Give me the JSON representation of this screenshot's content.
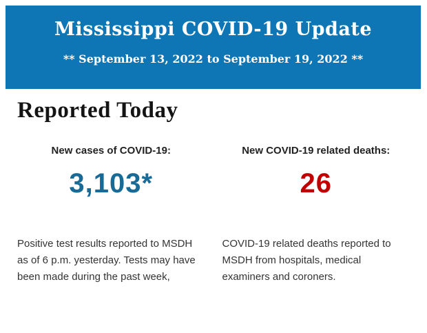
{
  "header": {
    "title": "Mississippi COVID-19 Update",
    "subtitle": "** September 13, 2022 to September 19, 2022 **",
    "background_color": "#0e76b5",
    "text_color": "#ffffff"
  },
  "main": {
    "section_title": "Reported Today",
    "stats": [
      {
        "label": "New cases of COVID-19:",
        "value": "3,103*",
        "value_color": "#186a97",
        "description": "Positive test results reported to MSDH as of 6 p.m. yesterday. Tests may have been made during the past week,"
      },
      {
        "label": "New COVID-19 related deaths:",
        "value": "26",
        "value_color": "#c00000",
        "description": "COVID-19 related deaths reported to MSDH from hospitals, medical examiners and coroners."
      }
    ]
  }
}
